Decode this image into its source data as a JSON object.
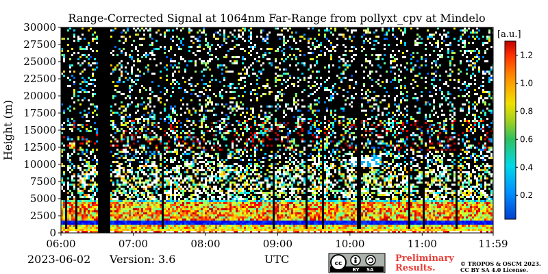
{
  "chart_data": {
    "type": "heatmap",
    "title": "Range-Corrected Signal at 1064nm Far-Range from pollyxt_cpv at Mindelo",
    "ylabel": "Height (m)",
    "xlabel": "UTC",
    "x_ticks": [
      "06:00",
      "07:00",
      "08:00",
      "09:00",
      "10:00",
      "11:00",
      "11:59"
    ],
    "x_range_hours": [
      6.0,
      11.983
    ],
    "y_ticks": [
      0,
      2500,
      5000,
      7500,
      10000,
      12500,
      15000,
      17500,
      20000,
      22500,
      25000,
      27500,
      30000
    ],
    "ylim": [
      0,
      30000
    ],
    "colorbar": {
      "unit": "[a.u.]",
      "ticks": [
        0.2,
        0.4,
        0.6,
        0.8,
        1.0,
        1.2
      ],
      "range": [
        0.03,
        1.3
      ],
      "colormap": "jet"
    },
    "date": "2023-06-02",
    "version": "Version: 3.6",
    "features": {
      "data_gap_utc": [
        "06:30",
        "06:40"
      ],
      "boundary_layer_top_m": 5000,
      "blue_layer_m": [
        1200,
        2000
      ],
      "high_signal_band_m": [
        2000,
        4600
      ],
      "upper_layer_m": [
        12000,
        16500
      ],
      "cloud_utc": [
        "10:00",
        "10:25"
      ],
      "cloud_height_m": [
        9600,
        11200
      ]
    }
  },
  "footer": {
    "cc_badge": "BY SA",
    "preliminary_line1": "Preliminary",
    "preliminary_line2": "Results.",
    "copyright_line1": "© TROPOS & OSCM 2023.",
    "copyright_line2": "CC BY SA 4.0 License."
  },
  "colors": {
    "preliminary": "#e8403a",
    "axis": "#000000",
    "background": "#ffffff"
  }
}
